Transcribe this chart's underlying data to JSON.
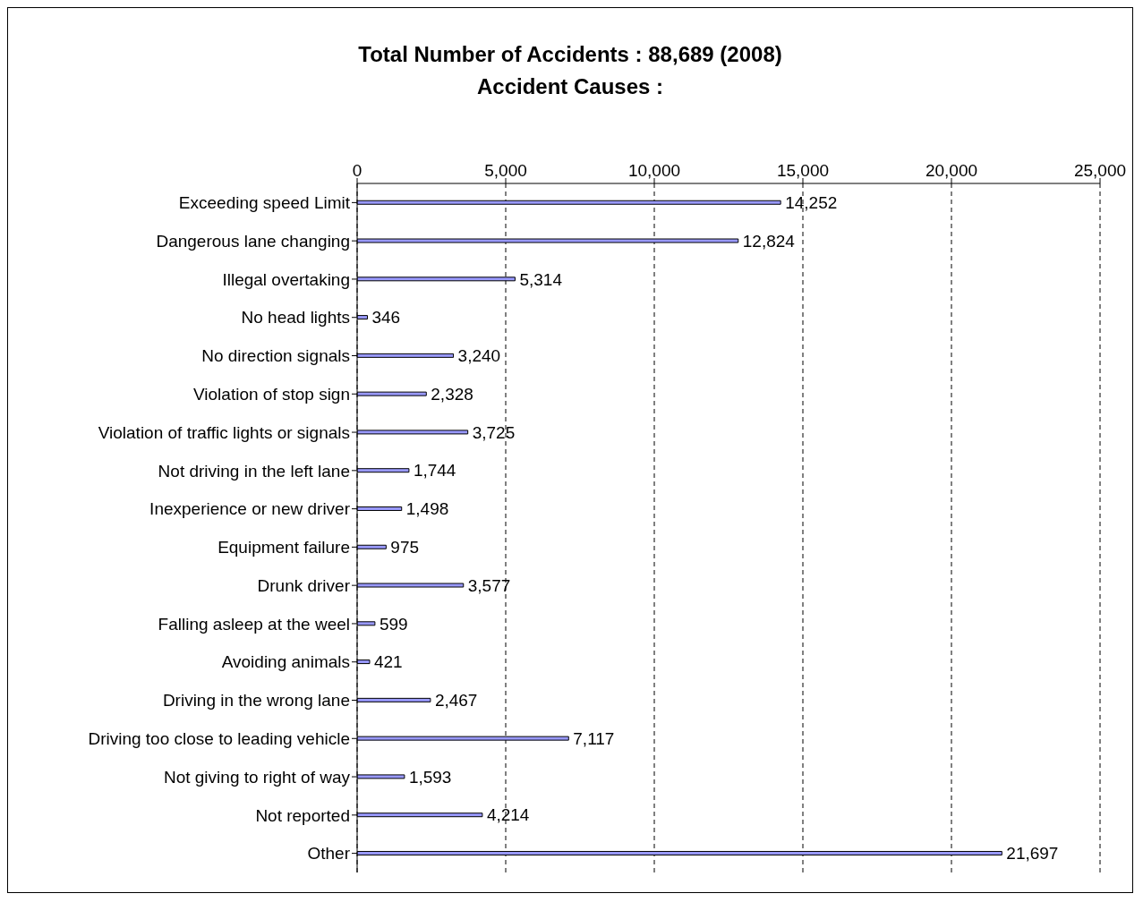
{
  "chart_data": {
    "type": "bar",
    "orientation": "horizontal",
    "title": "Total Number of Accidents : 88,689 (2008)",
    "subtitle": "Accident Causes :",
    "categories": [
      "Exceeding speed Limit",
      "Dangerous lane changing",
      "Illegal overtaking",
      "No head lights",
      "No direction signals",
      "Violation of stop sign",
      "Violation of traffic lights or signals",
      "Not driving in the left lane",
      "Inexperience or new driver",
      "Equipment failure",
      "Drunk driver",
      "Falling asleep at the weel",
      "Avoiding animals",
      "Driving in the wrong lane",
      "Driving too close to leading vehicle",
      "Not giving to right of way",
      "Not reported",
      "Other"
    ],
    "values": [
      14252,
      12824,
      5314,
      346,
      3240,
      2328,
      3725,
      1744,
      1498,
      975,
      3577,
      599,
      421,
      2467,
      7117,
      1593,
      4214,
      21697
    ],
    "value_labels": [
      "14,252",
      "12,824",
      "5,314",
      "346",
      "3,240",
      "2,328",
      "3,725",
      "1,744",
      "1,498",
      "975",
      "3,577",
      "599",
      "421",
      "2,467",
      "7,117",
      "1,593",
      "4,214",
      "21,697"
    ],
    "color": "#9999ff",
    "xlim": [
      0,
      25000
    ],
    "xticks": [
      {
        "value": 0,
        "label": "0"
      },
      {
        "value": 5000,
        "label": "5,000"
      },
      {
        "value": 10000,
        "label": "10,000"
      },
      {
        "value": 15000,
        "label": "15,000"
      },
      {
        "value": 20000,
        "label": "20,000"
      },
      {
        "value": 25000,
        "label": "25,000"
      }
    ],
    "grid": "x"
  }
}
